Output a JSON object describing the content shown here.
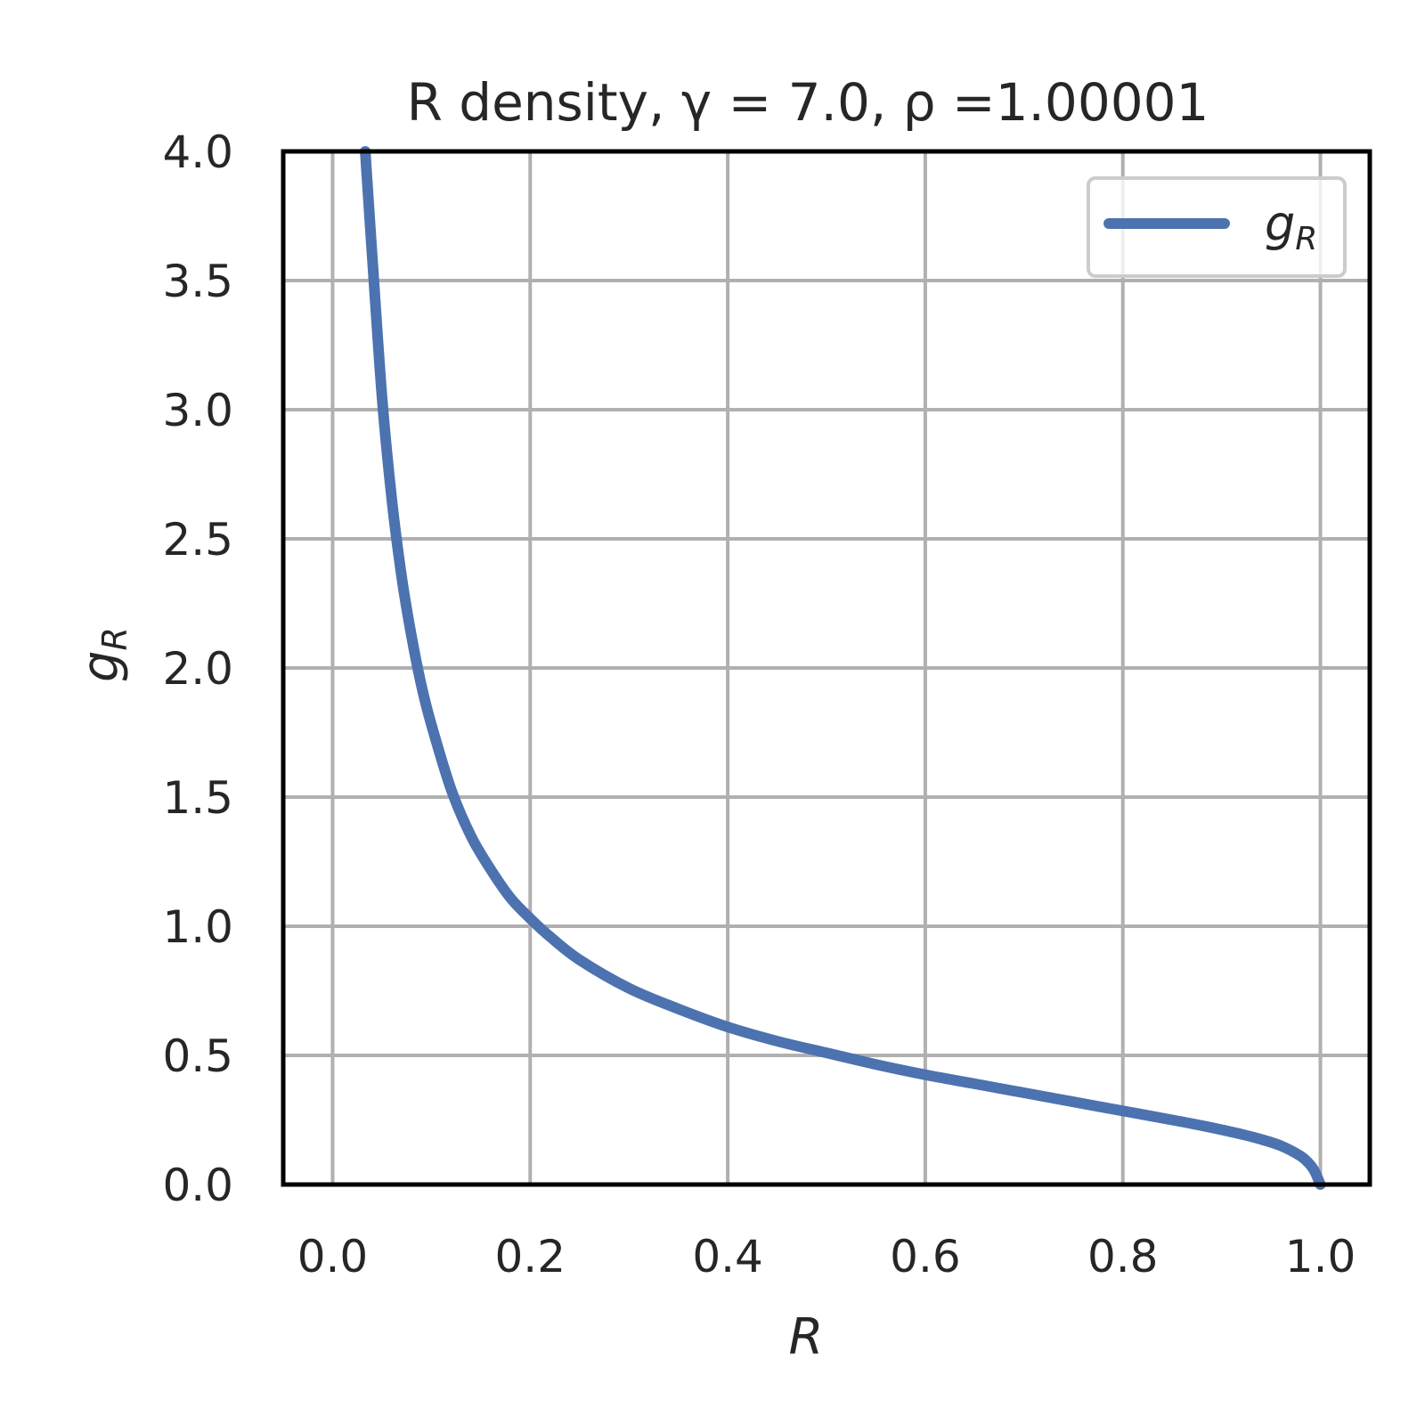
{
  "chart_data": {
    "type": "line",
    "title": "R density, γ = 7.0, ρ =1.00001",
    "xlabel": "R",
    "ylabel": "g",
    "ylabel_subscript": "R",
    "xlim": [
      -0.05,
      1.05
    ],
    "ylim": [
      0,
      4
    ],
    "xticks": [
      "0.0",
      "0.2",
      "0.4",
      "0.6",
      "0.8",
      "1.0"
    ],
    "yticks": [
      "0.0",
      "0.5",
      "1.0",
      "1.5",
      "2.0",
      "2.5",
      "3.0",
      "3.5",
      "4.0"
    ],
    "grid": true,
    "legend_position": "top-right",
    "series": [
      {
        "name": "g",
        "name_subscript": "R",
        "color": "#4c72b0",
        "x": [
          0.033,
          0.04,
          0.05,
          0.06,
          0.07,
          0.08,
          0.09,
          0.1,
          0.12,
          0.14,
          0.16,
          0.18,
          0.2,
          0.22,
          0.25,
          0.3,
          0.35,
          0.4,
          0.45,
          0.5,
          0.55,
          0.6,
          0.65,
          0.7,
          0.75,
          0.8,
          0.85,
          0.88,
          0.9,
          0.92,
          0.94,
          0.96,
          0.98,
          0.99,
          0.995,
          1.0
        ],
        "y": [
          4.0,
          3.6,
          3.05,
          2.65,
          2.35,
          2.12,
          1.93,
          1.78,
          1.53,
          1.35,
          1.22,
          1.11,
          1.03,
          0.96,
          0.87,
          0.76,
          0.68,
          0.61,
          0.555,
          0.51,
          0.465,
          0.425,
          0.39,
          0.355,
          0.32,
          0.285,
          0.25,
          0.228,
          0.212,
          0.195,
          0.175,
          0.15,
          0.11,
          0.075,
          0.045,
          0.0
        ]
      }
    ]
  }
}
